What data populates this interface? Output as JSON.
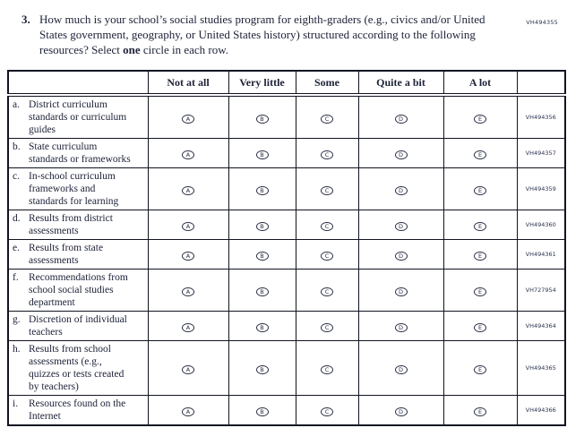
{
  "page_code": "VH494355",
  "question": {
    "number": "3.",
    "text_before_bold": "How much is your school’s social studies program for eighth-graders (e.g., civics and/or United States government, geography, or United States history) structured according to the following resources? Select ",
    "bold_word": "one",
    "text_after_bold": " circle in each row."
  },
  "table": {
    "column_headers": [
      "Not at all",
      "Very little",
      "Some",
      "Quite a bit",
      "A lot"
    ],
    "bubble_letters": [
      "A",
      "B",
      "C",
      "D",
      "E"
    ],
    "rows": [
      {
        "letter": "a.",
        "label": "District curriculum standards or curriculum guides",
        "code": "VH494356"
      },
      {
        "letter": "b.",
        "label": "State curriculum standards or frameworks",
        "code": "VH494357"
      },
      {
        "letter": "c.",
        "label": "In-school curriculum frameworks and standards for learning",
        "code": "VH494359"
      },
      {
        "letter": "d.",
        "label": "Results from district assessments",
        "code": "VH494360"
      },
      {
        "letter": "e.",
        "label": "Results from state assessments",
        "code": "VH494361"
      },
      {
        "letter": "f.",
        "label": "Recommendations from school social studies department",
        "code": "VH727954"
      },
      {
        "letter": "g.",
        "label": "Discretion of individual teachers",
        "code": "VH494364"
      },
      {
        "letter": "h.",
        "label": "Results from school assessments (e.g., quizzes or tests created by teachers)",
        "code": "VH494365"
      },
      {
        "letter": "i.",
        "label": "Resources found on the Internet",
        "code": "VH494366"
      }
    ]
  }
}
